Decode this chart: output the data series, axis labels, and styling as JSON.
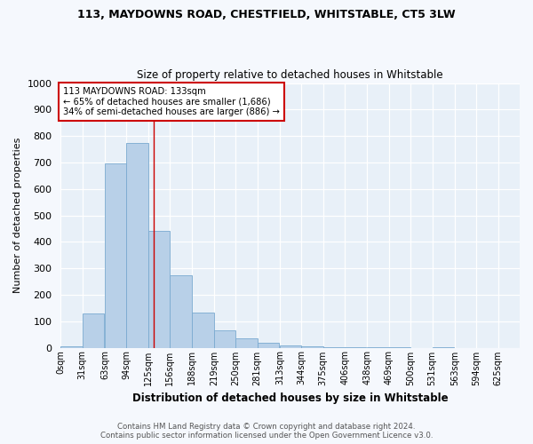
{
  "title1": "113, MAYDOWNS ROAD, CHESTFIELD, WHITSTABLE, CT5 3LW",
  "title2": "Size of property relative to detached houses in Whitstable",
  "xlabel": "Distribution of detached houses by size in Whitstable",
  "ylabel": "Number of detached properties",
  "bin_labels": [
    "0sqm",
    "31sqm",
    "63sqm",
    "94sqm",
    "125sqm",
    "156sqm",
    "188sqm",
    "219sqm",
    "250sqm",
    "281sqm",
    "313sqm",
    "344sqm",
    "375sqm",
    "406sqm",
    "438sqm",
    "469sqm",
    "500sqm",
    "531sqm",
    "563sqm",
    "594sqm",
    "625sqm"
  ],
  "bar_heights": [
    5,
    128,
    697,
    775,
    443,
    272,
    132,
    65,
    35,
    18,
    10,
    5,
    3,
    2,
    1,
    1,
    0,
    1,
    0,
    0,
    0
  ],
  "bar_color": "#b8d0e8",
  "bar_edge_color": "#7aaad0",
  "fig_background_color": "#f5f8fd",
  "ax_background_color": "#e8f0f8",
  "grid_color": "#ffffff",
  "annotation_line1": "113 MAYDOWNS ROAD: 133sqm",
  "annotation_line2": "← 65% of detached houses are smaller (1,686)",
  "annotation_line3": "34% of semi-detached houses are larger (886) →",
  "annotation_box_color": "#ffffff",
  "annotation_box_edge_color": "#cc0000",
  "vline_color": "#cc0000",
  "vline_x": 133,
  "ylim_max": 1000,
  "yticks": [
    0,
    100,
    200,
    300,
    400,
    500,
    600,
    700,
    800,
    900,
    1000
  ],
  "footnote": "Contains HM Land Registry data © Crown copyright and database right 2024.\nContains public sector information licensed under the Open Government Licence v3.0.",
  "bin_width": 31,
  "bin_starts": [
    0,
    31,
    63,
    94,
    125,
    156,
    188,
    219,
    250,
    281,
    313,
    344,
    375,
    406,
    438,
    469,
    500,
    531,
    563,
    594,
    625
  ]
}
